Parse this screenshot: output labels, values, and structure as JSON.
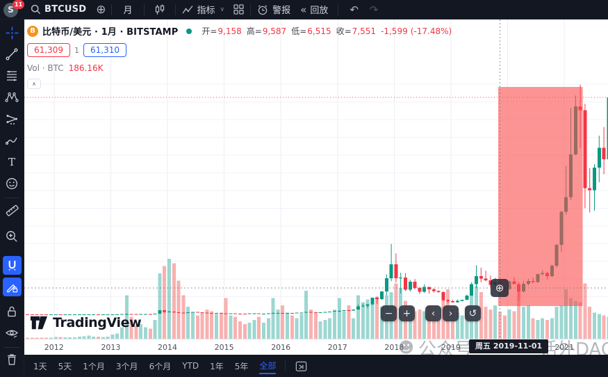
{
  "toolbar": {
    "logo_letter": "S",
    "badge_count": "11",
    "symbol": "BTCUSD",
    "interval_label": "月",
    "indicators_label": "指标",
    "alert_label": "警报",
    "replay_label": "回放"
  },
  "legend": {
    "title": "比特币/美元 · 1月 · BITSTAMP",
    "open_label": "开=",
    "open": "9,158",
    "high_label": "高=",
    "high": "9,587",
    "low_label": "低=",
    "low": "6,515",
    "close_label": "收=",
    "close": "7,551",
    "change": "-1,599",
    "change_pct": "(-17.48%)",
    "bid": "61,309",
    "spread": "1",
    "ask": "61,310",
    "vol_label": "Vol · BTC",
    "vol_value": "186.16K"
  },
  "nav": {
    "zoom_out": "−",
    "zoom_in": "+",
    "left": "‹",
    "right": "›",
    "reset": "↺"
  },
  "logo_text": "TradingView",
  "axis_tooltip": "周五 2019-11-01",
  "watermark": {
    "emoji": "☻",
    "prefix": "公众号",
    "suffix": "话外DAO"
  },
  "range_toolbar": {
    "items": [
      "1天",
      "5天",
      "1个月",
      "3个月",
      "6个月",
      "YTD",
      "1年",
      "5年",
      "全部"
    ],
    "active": "全部"
  },
  "colors": {
    "up": "#089981",
    "down": "#f23645",
    "vol_up": "rgba(38,166,154,0.45)",
    "vol_down": "rgba(239,83,80,0.45)",
    "accent": "#2962ff",
    "toolbar_bg": "#131722",
    "highlight": "rgba(252,77,77,0.6)",
    "grid": "#f0f3fa",
    "crosshair": "#787b86"
  },
  "chart_data": {
    "type": "candlestick",
    "symbol": "BTCUSD",
    "exchange": "BITSTAMP",
    "interval": "1M",
    "x_axis_years": [
      2012,
      2013,
      2014,
      2015,
      2016,
      2017,
      2018,
      2019,
      2020,
      2021
    ],
    "price_grid_step": 5000,
    "price_grid_max": 65000,
    "current_price": 61309,
    "crosshair": {
      "date": "2019-11-01",
      "weekday_label": "周五",
      "price": 7470
    },
    "highlight_range": {
      "from": "2019-11-01",
      "to": "2021-04-15"
    },
    "hovered_bar": {
      "date": "2019-11-01",
      "open": 9158,
      "high": 9587,
      "low": 6515,
      "close": 7551,
      "change": -1599,
      "change_pct": -17.48,
      "volume_kbtc": 186.16
    },
    "candles_format": [
      "month",
      "open",
      "high",
      "low",
      "close",
      "volume_kbtc"
    ],
    "candles": [
      [
        "2011-07",
        15,
        17,
        13,
        13.5,
        5
      ],
      [
        "2011-08",
        13.5,
        14,
        6,
        8.2,
        8
      ],
      [
        "2011-09",
        8.2,
        8.9,
        4.8,
        5.1,
        7
      ],
      [
        "2011-10",
        5.1,
        5.2,
        2,
        3.2,
        8
      ],
      [
        "2011-11",
        3.2,
        3.5,
        1.9,
        3,
        6
      ],
      [
        "2011-12",
        3,
        4.9,
        2.5,
        4.7,
        7
      ],
      [
        "2012-01",
        4.7,
        7.4,
        3.9,
        5.5,
        12
      ],
      [
        "2012-02",
        5.5,
        6,
        3.8,
        4.9,
        11
      ],
      [
        "2012-03",
        4.9,
        5.5,
        4.5,
        4.9,
        10
      ],
      [
        "2012-04",
        4.9,
        5.6,
        4.6,
        5,
        9
      ],
      [
        "2012-05",
        5,
        5.3,
        4.8,
        5.2,
        10
      ],
      [
        "2012-06",
        5.2,
        6.8,
        5.1,
        6.7,
        14
      ],
      [
        "2012-07",
        6.7,
        9.5,
        6.5,
        9.4,
        16
      ],
      [
        "2012-08",
        9.4,
        16.4,
        7.6,
        10.2,
        22
      ],
      [
        "2012-09",
        10.2,
        12.9,
        9.9,
        12.4,
        15
      ],
      [
        "2012-10",
        12.4,
        13,
        10.3,
        11.2,
        14
      ],
      [
        "2012-11",
        11.2,
        12.9,
        10.5,
        12.6,
        13
      ],
      [
        "2012-12",
        12.6,
        14.1,
        12.2,
        13.5,
        15
      ],
      [
        "2013-01",
        13.5,
        21,
        13,
        20.4,
        28
      ],
      [
        "2013-02",
        20.4,
        34.8,
        19.5,
        33.4,
        35
      ],
      [
        "2013-03",
        33.4,
        95,
        33,
        93,
        80
      ],
      [
        "2013-04",
        93,
        266,
        50,
        139,
        300
      ],
      [
        "2013-05",
        139,
        145,
        79,
        128,
        150
      ],
      [
        "2013-06",
        128,
        133,
        88,
        97,
        90
      ],
      [
        "2013-07",
        97,
        111,
        63,
        106,
        100
      ],
      [
        "2013-08",
        106,
        135,
        101,
        135,
        80
      ],
      [
        "2013-09",
        135,
        147,
        110,
        133,
        70
      ],
      [
        "2013-10",
        133,
        230,
        125,
        211,
        130
      ],
      [
        "2013-11",
        211,
        1150,
        200,
        1130,
        450
      ],
      [
        "2013-12",
        1130,
        1240,
        380,
        732,
        500
      ],
      [
        "2014-01",
        732,
        1000,
        700,
        806,
        550
      ],
      [
        "2014-02",
        806,
        830,
        400,
        550,
        520
      ],
      [
        "2014-03",
        550,
        700,
        420,
        450,
        400
      ],
      [
        "2014-04",
        450,
        550,
        340,
        446,
        300
      ],
      [
        "2014-05",
        446,
        630,
        420,
        627,
        220
      ],
      [
        "2014-06",
        627,
        680,
        540,
        640,
        180
      ],
      [
        "2014-07",
        640,
        660,
        560,
        580,
        160
      ],
      [
        "2014-08",
        580,
        600,
        440,
        478,
        180
      ],
      [
        "2014-09",
        478,
        490,
        280,
        380,
        200
      ],
      [
        "2014-10",
        380,
        410,
        275,
        338,
        190
      ],
      [
        "2014-11",
        338,
        460,
        320,
        378,
        170
      ],
      [
        "2014-12",
        378,
        384,
        280,
        318,
        180
      ],
      [
        "2015-01",
        318,
        320,
        152,
        218,
        280
      ],
      [
        "2015-02",
        218,
        270,
        200,
        254,
        160
      ],
      [
        "2015-03",
        254,
        300,
        236,
        244,
        150
      ],
      [
        "2015-04",
        244,
        262,
        210,
        236,
        120
      ],
      [
        "2015-05",
        236,
        248,
        225,
        230,
        100
      ],
      [
        "2015-06",
        230,
        268,
        220,
        264,
        110
      ],
      [
        "2015-07",
        264,
        318,
        255,
        284,
        130
      ],
      [
        "2015-08",
        284,
        288,
        198,
        230,
        150
      ],
      [
        "2015-09",
        230,
        248,
        223,
        236,
        110
      ],
      [
        "2015-10",
        236,
        334,
        234,
        314,
        140
      ],
      [
        "2015-11",
        314,
        504,
        300,
        377,
        280
      ],
      [
        "2015-12",
        377,
        467,
        350,
        430,
        200
      ],
      [
        "2016-01",
        430,
        436,
        350,
        368,
        230
      ],
      [
        "2016-02",
        368,
        448,
        365,
        437,
        180
      ],
      [
        "2016-03",
        437,
        440,
        380,
        416,
        160
      ],
      [
        "2016-04",
        416,
        470,
        410,
        448,
        140
      ],
      [
        "2016-05",
        448,
        550,
        440,
        531,
        170
      ],
      [
        "2016-06",
        531,
        780,
        520,
        673,
        330
      ],
      [
        "2016-07",
        673,
        700,
        580,
        624,
        200
      ],
      [
        "2016-08",
        624,
        630,
        465,
        573,
        180
      ],
      [
        "2016-09",
        573,
        630,
        565,
        610,
        120
      ],
      [
        "2016-10",
        610,
        740,
        600,
        700,
        130
      ],
      [
        "2016-11",
        700,
        755,
        660,
        745,
        140
      ],
      [
        "2016-12",
        745,
        985,
        740,
        963,
        200
      ],
      [
        "2017-01",
        963,
        1180,
        750,
        970,
        280
      ],
      [
        "2017-02",
        970,
        1230,
        920,
        1180,
        190
      ],
      [
        "2017-03",
        1180,
        1290,
        890,
        1080,
        230
      ],
      [
        "2017-04",
        1080,
        1350,
        1060,
        1350,
        140
      ],
      [
        "2017-05",
        1350,
        2780,
        1320,
        2300,
        300
      ],
      [
        "2017-06",
        2300,
        3000,
        2100,
        2480,
        250
      ],
      [
        "2017-07",
        2480,
        2920,
        1830,
        2875,
        270
      ],
      [
        "2017-08",
        2875,
        4765,
        2650,
        4735,
        260
      ],
      [
        "2017-09",
        4735,
        4980,
        2970,
        4360,
        290
      ],
      [
        "2017-10",
        4360,
        6480,
        4110,
        6468,
        220
      ],
      [
        "2017-11",
        6468,
        11300,
        5400,
        10233,
        300
      ],
      [
        "2017-12",
        10233,
        19891,
        9400,
        14156,
        320
      ],
      [
        "2018-01",
        14156,
        17234,
        9052,
        10221,
        380
      ],
      [
        "2018-02",
        10221,
        11786,
        5920,
        10397,
        350
      ],
      [
        "2018-03",
        10397,
        11650,
        6600,
        6938,
        260
      ],
      [
        "2018-04",
        6938,
        9760,
        6430,
        9240,
        220
      ],
      [
        "2018-05",
        9240,
        9990,
        7040,
        7494,
        190
      ],
      [
        "2018-06",
        7494,
        7750,
        5780,
        6404,
        200
      ],
      [
        "2018-07",
        6404,
        8500,
        6070,
        7735,
        190
      ],
      [
        "2018-08",
        7735,
        7770,
        5860,
        7033,
        230
      ],
      [
        "2018-09",
        7033,
        7410,
        6120,
        6626,
        160
      ],
      [
        "2018-10",
        6626,
        6830,
        6190,
        6317,
        130
      ],
      [
        "2018-11",
        6317,
        6540,
        3650,
        4017,
        300
      ],
      [
        "2018-12",
        4017,
        4310,
        3156,
        3693,
        340
      ],
      [
        "2019-01",
        3693,
        4110,
        3350,
        3437,
        200
      ],
      [
        "2019-02",
        3437,
        4190,
        3330,
        3816,
        180
      ],
      [
        "2019-03",
        3816,
        4140,
        3660,
        4092,
        160
      ],
      [
        "2019-04",
        4092,
        5590,
        4030,
        5320,
        220
      ],
      [
        "2019-05",
        5320,
        9090,
        5270,
        8558,
        300
      ],
      [
        "2019-06",
        8558,
        13880,
        7450,
        10818,
        360
      ],
      [
        "2019-07",
        10818,
        13180,
        9080,
        10082,
        320
      ],
      [
        "2019-08",
        10082,
        12320,
        9350,
        9630,
        220
      ],
      [
        "2019-09",
        9630,
        10950,
        7700,
        8308,
        200
      ],
      [
        "2019-10",
        8308,
        10350,
        7300,
        9158,
        230
      ],
      [
        "2019-11",
        9158,
        9587,
        6515,
        7551,
        186.16
      ],
      [
        "2019-12",
        7551,
        7760,
        6430,
        7193,
        160
      ],
      [
        "2020-01",
        7193,
        9570,
        6850,
        9350,
        200
      ],
      [
        "2020-02",
        9350,
        10500,
        8520,
        8543,
        190
      ],
      [
        "2020-03",
        8543,
        9190,
        3850,
        6438,
        370
      ],
      [
        "2020-04",
        6438,
        9460,
        6150,
        8629,
        220
      ],
      [
        "2020-05",
        8629,
        10070,
        8100,
        9454,
        230
      ],
      [
        "2020-06",
        9454,
        10380,
        8830,
        9137,
        140
      ],
      [
        "2020-07",
        9137,
        11440,
        8900,
        11350,
        130
      ],
      [
        "2020-08",
        11350,
        12480,
        11000,
        11655,
        140
      ],
      [
        "2020-09",
        11655,
        12050,
        9840,
        10776,
        130
      ],
      [
        "2020-10",
        10776,
        14100,
        10500,
        13797,
        140
      ],
      [
        "2020-11",
        13797,
        19863,
        13200,
        19698,
        220
      ],
      [
        "2020-12",
        19698,
        29300,
        17600,
        28996,
        230
      ],
      [
        "2021-01",
        28996,
        41950,
        28130,
        33108,
        340
      ],
      [
        "2021-02",
        33108,
        58352,
        32330,
        45164,
        280
      ],
      [
        "2021-03",
        45164,
        61844,
        44950,
        58763,
        260
      ],
      [
        "2021-04",
        58763,
        64895,
        46930,
        57720,
        250
      ],
      [
        "2021-05",
        57720,
        59500,
        30000,
        35660,
        380
      ],
      [
        "2021-06",
        35660,
        41330,
        28800,
        35040,
        220
      ],
      [
        "2021-07",
        35040,
        42448,
        29300,
        41460,
        180
      ],
      [
        "2021-08",
        41460,
        50500,
        37330,
        47100,
        170
      ],
      [
        "2021-09",
        47100,
        52920,
        39600,
        43790,
        160
      ],
      [
        "2021-10",
        43790,
        62000,
        43280,
        61309,
        150
      ]
    ]
  }
}
